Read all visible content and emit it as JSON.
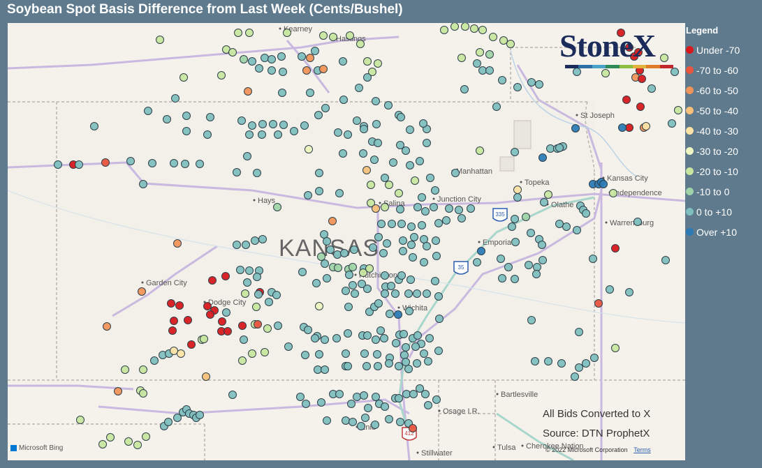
{
  "title": "Soybean Spot Basis Difference from Last Week (Cents/Bushel)",
  "brand": {
    "name": "StoneX",
    "tm": "™"
  },
  "legend": {
    "title": "Legend",
    "items": [
      {
        "label": "Under -70",
        "color": "#d7191c"
      },
      {
        "label": "-70 to -60",
        "color": "#e8553f"
      },
      {
        "label": "-60 to -50",
        "color": "#f0945a"
      },
      {
        "label": "-50 to -40",
        "color": "#f7c07a"
      },
      {
        "label": "-40 to -30",
        "color": "#fbe3a6"
      },
      {
        "label": "-30 to -20",
        "color": "#eef5c0"
      },
      {
        "label": "-20 to -10",
        "color": "#c8e6a0"
      },
      {
        "label": "-10 to 0",
        "color": "#9fd3a8"
      },
      {
        "label": "0 to +10",
        "color": "#7fbfbf"
      },
      {
        "label": "Over +10",
        "color": "#2c7bb6"
      }
    ]
  },
  "notes": {
    "converted": "All Bids Converted to X",
    "source": "Source: DTN ProphetX"
  },
  "attribution": {
    "bing": "Microsoft Bing",
    "copyright": "© 2022 Microsoft Corporation",
    "terms": "Terms"
  },
  "map": {
    "state_label": "KANSAS",
    "places": [
      "Kearney",
      "Hastings",
      "St Joseph",
      "Manhattan",
      "Topeka",
      "Kansas City",
      "Independence",
      "Hays",
      "Salina",
      "Junction City",
      "Olathe",
      "Warrensburg",
      "Emporia",
      "Garden City",
      "Dodge City",
      "Hutchinson",
      "Wichita",
      "Bartlesville",
      "Osage I.R.",
      "Enid",
      "Tulsa",
      "Stillwater",
      "Cherokee Nation"
    ],
    "route_shields": [
      "335",
      "35",
      "412"
    ]
  },
  "points_summary": {
    "red": [
      "d7191c"
    ],
    "note": "Points colored by legend category"
  }
}
